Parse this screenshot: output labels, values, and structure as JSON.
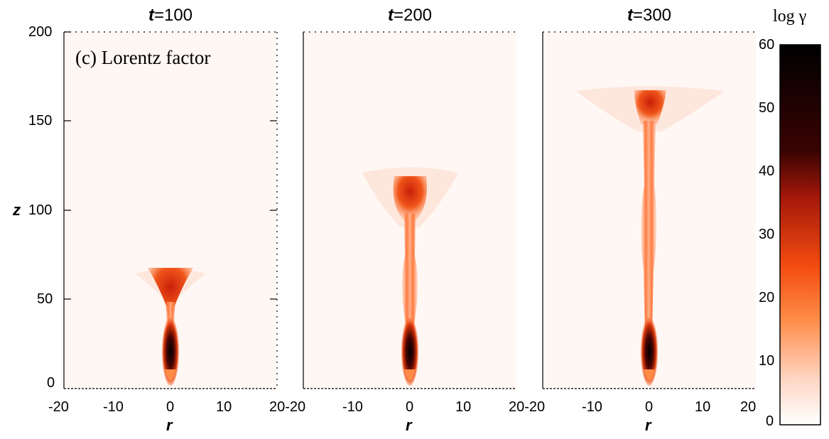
{
  "figure": {
    "panel_label": "(c) Lorentz factor",
    "panels": [
      {
        "title_var": "t",
        "title_value": "=100"
      },
      {
        "title_var": "t",
        "title_value": "=200"
      },
      {
        "title_var": "t",
        "title_value": "=300"
      }
    ],
    "x_axis": {
      "label": "r",
      "ticks": [
        "-20",
        "-10",
        "0",
        "10",
        "20"
      ],
      "range": [
        -20,
        20
      ]
    },
    "y_axis": {
      "label": "z",
      "ticks": [
        "200",
        "150",
        "100",
        "50",
        "0"
      ],
      "range": [
        0,
        200
      ]
    },
    "colorbar": {
      "title": "log γ",
      "ticks": [
        "60",
        "50",
        "40",
        "30",
        "20",
        "10",
        "0"
      ],
      "range": [
        0,
        60
      ],
      "colors": [
        "#ffffff",
        "#ffd6c4",
        "#ff8a45",
        "#f24b10",
        "#a3180a",
        "#3a0303",
        "#000000"
      ]
    },
    "x_tick_joined_labels": [
      "20-20",
      "20-20"
    ]
  }
}
